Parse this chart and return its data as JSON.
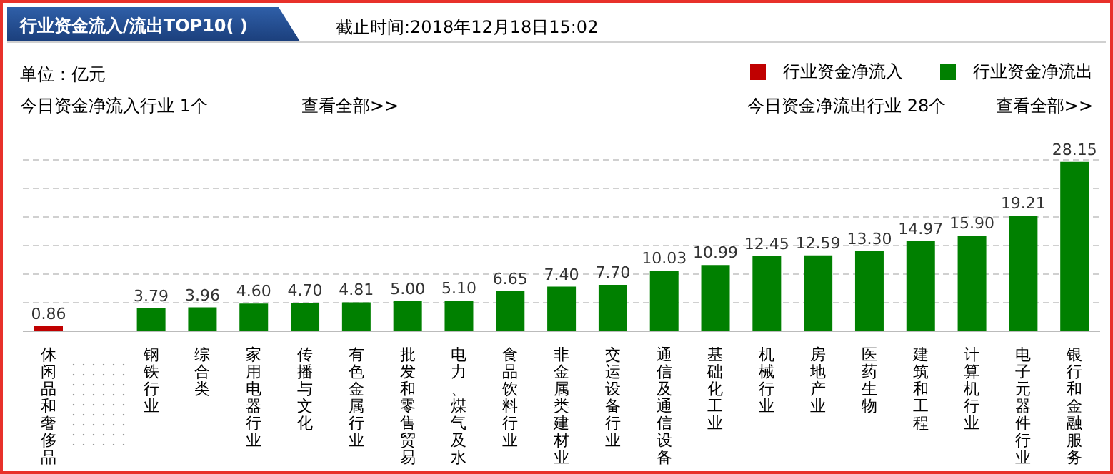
{
  "chart_data": {
    "type": "bar",
    "title": "行业资金流入/流出TOP10( )",
    "subtitle": "截止时间:2018年12月18日15:02",
    "annotations": [
      "单位：亿元",
      "今日资金净流入行业 1个",
      "查看全部>>",
      "今日资金净流出行业 28个",
      "查看全部>>"
    ],
    "categories": [
      "休闲品和奢侈品",
      null,
      "钢铁行业",
      "综合类",
      "家用电器行业",
      "传播与文化",
      "有色金属行业",
      "批发和零售贸易",
      "电力、煤气及水",
      "食品饮料行业",
      "非金属类建材业",
      "交运设备行业",
      "通信及通信设备",
      "基础化工业",
      "机械行业",
      "房地产业",
      "医药生物",
      "建筑和工程",
      "计算机行业",
      "电子元器件行业",
      "银行和金融服务"
    ],
    "series": [
      {
        "name": "行业资金净流入",
        "color": "#c00000",
        "values": [
          0.86,
          null,
          null,
          null,
          null,
          null,
          null,
          null,
          null,
          null,
          null,
          null,
          null,
          null,
          null,
          null,
          null,
          null,
          null,
          null,
          null
        ],
        "value_labels": [
          "0.86",
          null,
          null,
          null,
          null,
          null,
          null,
          null,
          null,
          null,
          null,
          null,
          null,
          null,
          null,
          null,
          null,
          null,
          null,
          null,
          null
        ]
      },
      {
        "name": "行业资金净流出",
        "color": "#008000",
        "values": [
          null,
          null,
          3.79,
          3.96,
          4.6,
          4.7,
          4.81,
          5,
          5.1,
          6.65,
          7.4,
          7.7,
          10.03,
          10.99,
          12.45,
          12.59,
          13.3,
          14.97,
          15.9,
          19.21,
          28.15
        ],
        "value_labels": [
          null,
          null,
          "3.79",
          "3.96",
          "4.60",
          "4.70",
          "4.81",
          "5.00",
          "5.10",
          "6.65",
          "7.40",
          "7.70",
          "10.03",
          "10.99",
          "12.45",
          "12.59",
          "13.30",
          "14.97",
          "15.90",
          "19.21",
          "28.15"
        ]
      }
    ],
    "stacked": true,
    "legend": "top right",
    "grid": "y",
    "tick_labels": "x"
  }
}
